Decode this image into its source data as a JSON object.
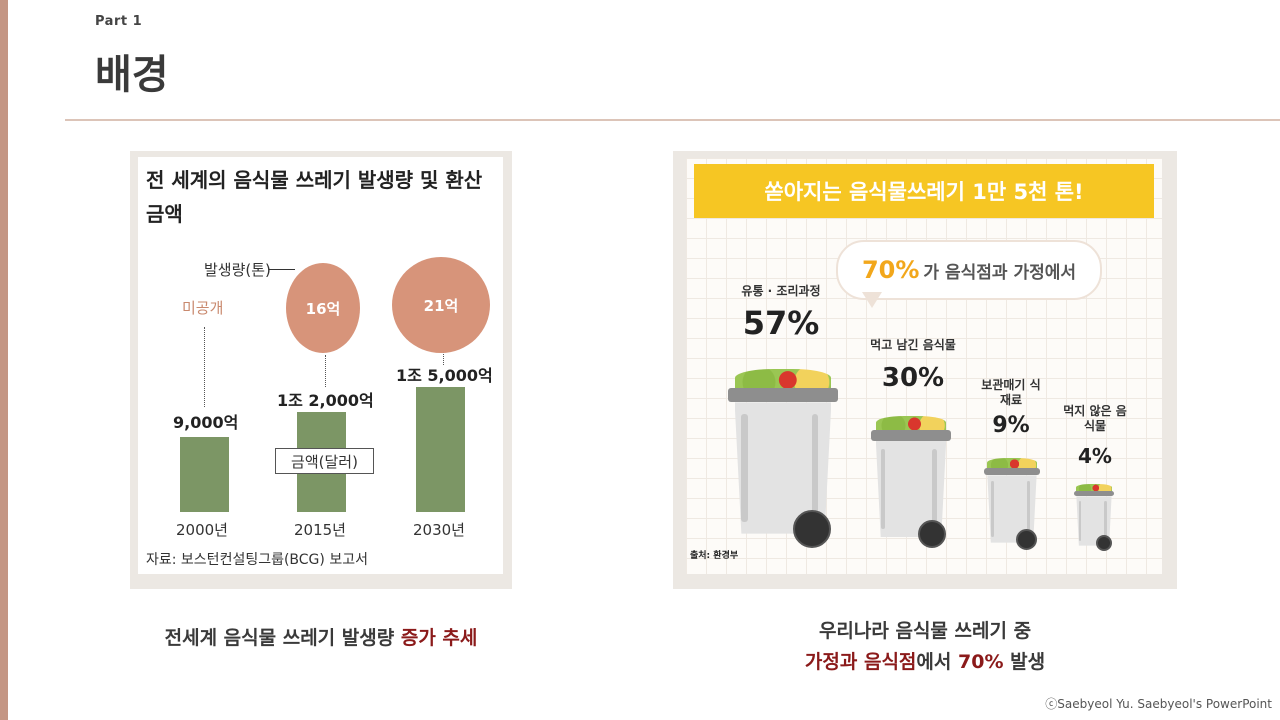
{
  "slide": {
    "part_label": "Part 1",
    "title": "배경",
    "copyright": "ⓒSaebyeol Yu. Saebyeol's PowerPoint",
    "colors": {
      "accent": "#c49684",
      "highlight": "#8b1a1a",
      "banner": "#f6c623",
      "bar": "#7c9665",
      "circle": "#d7947a"
    }
  },
  "left_graphic": {
    "title": "전 세계의 음식물 쓰레기 발생량 및 환산 금액",
    "volume_label": "발생량(톤)",
    "amount_label": "금액(달러)",
    "undisclosed": "미공개",
    "source": "자료: 보스턴컨설팅그룹(BCG) 보고서",
    "chart_data": {
      "type": "bar",
      "categories": [
        "2000년",
        "2015년",
        "2030년"
      ],
      "series": [
        {
          "name": "금액(달러)",
          "values": [
            9000,
            12000,
            15000
          ],
          "labels": [
            "9,000억",
            "1조 2,000억",
            "1조 5,000억"
          ]
        },
        {
          "name": "발생량(톤)",
          "values": [
            null,
            16,
            21
          ],
          "labels": [
            "미공개",
            "16억",
            "21억"
          ]
        }
      ]
    }
  },
  "right_graphic": {
    "banner": "쏟아지는 음식물쓰레기 1만 5천 톤!",
    "bubble_big": "70%",
    "bubble_text": "가 음식점과 가정에서",
    "source": "출처: 환경부",
    "chart_data": {
      "type": "bar",
      "categories": [
        "유통 · 조리과정",
        "먹고 남긴 음식물",
        "보관매기 식재료",
        "먹지 않은 음식물"
      ],
      "values": [
        57,
        30,
        9,
        4
      ],
      "labels": [
        "57%",
        "30%",
        "9%",
        "4%"
      ]
    }
  },
  "captions": {
    "left_plain": "전세계 음식물 쓰레기 발생량 ",
    "left_highlight": "증가 추세",
    "right_line1": "우리나라 음식물 쓰레기 중",
    "right_hl1": "가정과 음식점",
    "right_mid": "에서 ",
    "right_hl2": "70%",
    "right_end": " 발생"
  }
}
